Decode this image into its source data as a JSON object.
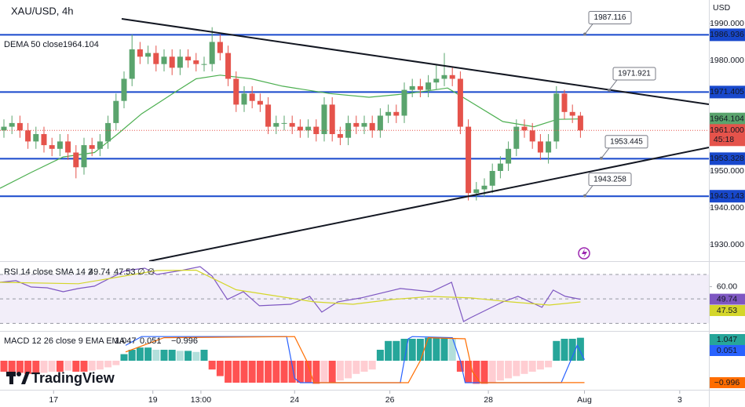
{
  "header": {
    "currency": "USD",
    "logo": "TradingView"
  },
  "chart_data": [
    {
      "type": "candlestick",
      "title": "XAU/USD, 4h",
      "open": [
        1961,
        1962,
        1963,
        1961,
        1958,
        1960,
        1957,
        1956,
        1958,
        1955,
        1951,
        1957,
        1956,
        1958,
        1963,
        1969,
        1975,
        1983,
        1981,
        1982,
        1979,
        1981,
        1978,
        1981,
        1980,
        1979,
        1979,
        1985,
        1982,
        1975,
        1968,
        1971,
        1969,
        1968,
        1962,
        1963,
        1963,
        1962,
        1961,
        1962,
        1960,
        1968,
        1960,
        1959,
        1963,
        1962,
        1963,
        1961,
        1965,
        1966,
        1965,
        1972,
        1973,
        1972,
        1974,
        1975,
        1976,
        1975,
        1962,
        1944,
        1945,
        1946,
        1950,
        1952,
        1956,
        1962,
        1961,
        1958,
        1955,
        1958,
        1971,
        1966,
        1965
      ],
      "high": [
        1964,
        1965,
        1965,
        1963,
        1962,
        1962,
        1959,
        1960,
        1960,
        1957,
        1959,
        1959,
        1960,
        1965,
        1971,
        1977,
        1987,
        1985,
        1984,
        1984,
        1983,
        1983,
        1983,
        1983,
        1982,
        1981,
        1989,
        1987,
        1984,
        1977,
        1973,
        1973,
        1971,
        1970,
        1965,
        1965,
        1965,
        1964,
        1964,
        1964,
        1970,
        1970,
        1962,
        1965,
        1965,
        1965,
        1965,
        1967,
        1968,
        1968,
        1974,
        1975,
        1975,
        1976,
        1979,
        1982,
        1978,
        1977,
        1964,
        1947,
        1948,
        1952,
        1954,
        1958,
        1964,
        1964,
        1963,
        1960,
        1960,
        1973,
        1972,
        1968,
        1966
      ],
      "low": [
        1959,
        1960,
        1959,
        1956,
        1956,
        1955,
        1954,
        1954,
        1953,
        1948,
        1949,
        1954,
        1954,
        1956,
        1961,
        1967,
        1973,
        1979,
        1979,
        1977,
        1977,
        1976,
        1976,
        1978,
        1977,
        1977,
        1977,
        1980,
        1973,
        1966,
        1966,
        1967,
        1966,
        1960,
        1960,
        1961,
        1960,
        1959,
        1959,
        1958,
        1958,
        1958,
        1957,
        1957,
        1960,
        1960,
        1959,
        1959,
        1963,
        1963,
        1963,
        1970,
        1970,
        1970,
        1972,
        1973,
        1973,
        1960,
        1942,
        1942,
        1943,
        1944,
        1948,
        1950,
        1954,
        1959,
        1956,
        1953,
        1952,
        1956,
        1964,
        1963,
        1959
      ],
      "close": [
        1962,
        1963,
        1961,
        1958,
        1960,
        1957,
        1956,
        1958,
        1955,
        1951,
        1957,
        1956,
        1958,
        1963,
        1969,
        1975,
        1983,
        1981,
        1982,
        1979,
        1981,
        1978,
        1981,
        1980,
        1979,
        1979,
        1985,
        1982,
        1975,
        1968,
        1971,
        1969,
        1968,
        1962,
        1963,
        1963,
        1962,
        1961,
        1962,
        1960,
        1968,
        1960,
        1959,
        1963,
        1962,
        1963,
        1961,
        1965,
        1966,
        1965,
        1972,
        1973,
        1972,
        1974,
        1975,
        1976,
        1975,
        1962,
        1944,
        1945,
        1946,
        1950,
        1952,
        1956,
        1962,
        1961,
        1958,
        1955,
        1958,
        1971,
        1966,
        1965,
        1961
      ],
      "up_color": "#5aa46d",
      "down_color": "#e5534b",
      "xlim": [
        -0.49,
        88.04
      ],
      "xticks": [
        {
          "value": 6.2,
          "label": "17"
        },
        {
          "value": 18.6,
          "label": "19"
        },
        {
          "value": 24.6,
          "label": "13:00"
        },
        {
          "value": 36.3,
          "label": "24"
        },
        {
          "value": 48.2,
          "label": "26"
        },
        {
          "value": 60.5,
          "label": "28"
        },
        {
          "value": 72.5,
          "label": "Aug"
        },
        {
          "value": 84.4,
          "label": "3"
        }
      ],
      "ylim": [
        1925.53,
        1996.38
      ],
      "yticks": [
        {
          "value": 1990,
          "label": "1990.000"
        },
        {
          "value": 1980,
          "label": "1980.000"
        },
        {
          "value": 1950,
          "label": "1950.000"
        },
        {
          "value": 1940,
          "label": "1940.000"
        },
        {
          "value": 1930,
          "label": "1930.000"
        }
      ],
      "indicator": {
        "label": "DEMA 50 close",
        "color": "#4caf50",
        "x": [
          -0.49,
          3.4,
          7.4,
          11.3,
          14.2,
          17.2,
          21.1,
          24,
          27,
          30.9,
          34.8,
          40.7,
          45.6,
          50.5,
          55.4,
          58.3,
          62.3,
          66.2,
          69.1,
          72
        ],
        "values": [
          1945.3,
          1949.6,
          1953.8,
          1955,
          1960,
          1965.5,
          1971,
          1975,
          1976,
          1975,
          1973,
          1971,
          1970,
          1971,
          1972.5,
          1968.7,
          1963.4,
          1962,
          1964,
          1964.104
        ]
      },
      "levels": [
        1986.936,
        1971.405,
        1953.328,
        1943.143
      ],
      "level_color": "#1848cc",
      "notes": [
        1987.116,
        1971.921,
        1953.445,
        1943.258
      ],
      "last_price": {
        "value": 1961,
        "label": "1961.000",
        "countdown": "45:18"
      }
    },
    {
      "type": "rsi",
      "title": "RSI 14 close SMA 14 2",
      "na_marks": "∅ ∅",
      "ylim": [
        25.1,
        79.6
      ],
      "yticks": [
        {
          "value": 60,
          "label": "60.00"
        }
      ],
      "bands": [
        70,
        50,
        30
      ],
      "series": [
        {
          "color": "#7e57c2",
          "x": [
            -0.49,
            1.5,
            3.4,
            5.4,
            7.4,
            9.3,
            11.3,
            13.2,
            15.2,
            17.6,
            19.1,
            22.1,
            24.5,
            26,
            27.9,
            29.9,
            31.9,
            35.8,
            38.2,
            39.7,
            41.7,
            44.6,
            49.5,
            53.4,
            55.9,
            57.4,
            58.3,
            62.3,
            64.2,
            67.2,
            68.6,
            70.1,
            72
          ],
          "values": [
            63.6,
            64.9,
            59.7,
            59.1,
            55.9,
            58.5,
            60.4,
            66.8,
            73.2,
            75.1,
            70,
            73.2,
            76.4,
            68.7,
            49.5,
            55.9,
            44.4,
            45.6,
            52.1,
            39.2,
            47.6,
            50.8,
            58.5,
            55.9,
            63.6,
            31.5,
            34.7,
            47.6,
            52.1,
            43.1,
            57.2,
            52.1,
            49.74
          ]
        },
        {
          "color": "#d4d62a",
          "x": [
            -0.49,
            9.3,
            19.1,
            24,
            29,
            38.7,
            43.6,
            48.5,
            53.4,
            58.3,
            63.2,
            68.1,
            72
          ],
          "values": [
            63.6,
            62.4,
            73.2,
            73.5,
            57.5,
            47.6,
            45.6,
            49.5,
            52,
            50.8,
            47.6,
            45,
            47.53
          ]
        }
      ]
    },
    {
      "type": "macd",
      "title": "MACD 12 26 close 9 EMA EMA",
      "ylim": [
        -1.25,
        1.25
      ],
      "histogram": [
        -0.5,
        -0.55,
        -0.55,
        -0.6,
        -0.6,
        -0.55,
        -0.5,
        -0.5,
        -0.45,
        -0.5,
        -0.5,
        -0.45,
        -0.4,
        -0.3,
        -0.2,
        0.3,
        0.5,
        0.6,
        0.6,
        0.5,
        0.5,
        0.5,
        0.45,
        0.45,
        0.4,
        0.5,
        -0.4,
        -0.7,
        -1.0,
        -1.0,
        -1.0,
        -1.0,
        -1.0,
        -1.0,
        -1.0,
        -1.0,
        -1.0,
        -1.0,
        -1.0,
        -1.05,
        -1.0,
        -1.0,
        -0.9,
        -0.8,
        -0.6,
        -0.5,
        -0.4,
        0.5,
        0.9,
        0.9,
        1.0,
        1.0,
        1.0,
        1.05,
        1.05,
        1.05,
        1.0,
        -0.5,
        -1.0,
        -1.05,
        -1.05,
        -1.0,
        -0.9,
        -0.8,
        -0.7,
        -0.6,
        -0.5,
        -0.4,
        -0.3,
        0.9,
        1.0,
        1.0,
        1.047
      ],
      "histogram_colors": {
        "up_rising": "#26a69a",
        "up_falling": "#b2dfdb",
        "down_falling": "#ff5252",
        "down_rising": "#ffcdd2"
      },
      "macd": {
        "color": "#2962ff",
        "x": [
          15.2,
          17.2,
          35.3,
          36.3,
          37,
          49.5,
          50.5,
          51,
          56,
          57,
          57.6,
          69.6,
          71.6,
          72.5
        ],
        "values": [
          0.7,
          1.1,
          1.1,
          -0.8,
          -1.0,
          -1.0,
          1.0,
          1.1,
          1.05,
          0,
          -1.0,
          -1.0,
          0.7,
          0.051
        ]
      },
      "signal": {
        "color": "#ff6d00",
        "last_label": "−0.996",
        "x": [
          15.2,
          20,
          36.3,
          37.8,
          38.7,
          50.5,
          52,
          53,
          57.6,
          58.5,
          59.5,
          72.5
        ],
        "values": [
          0.4,
          1.05,
          1.1,
          0,
          -1.0,
          -1.0,
          0,
          1.05,
          1.0,
          -0.5,
          -1.0,
          -0.996
        ]
      }
    }
  ]
}
